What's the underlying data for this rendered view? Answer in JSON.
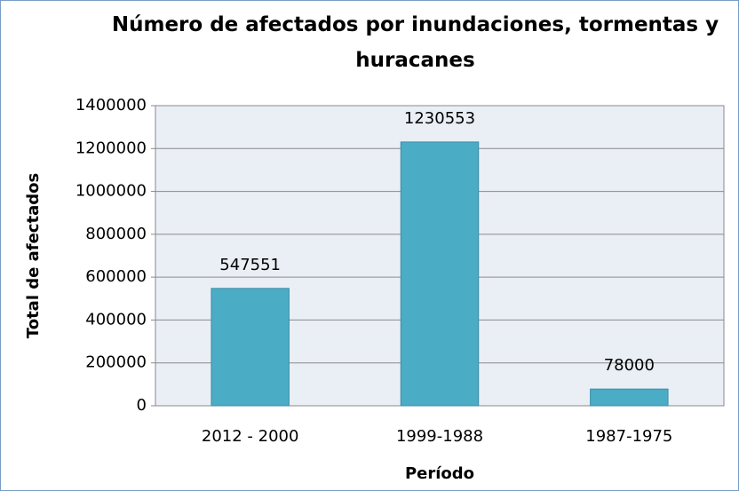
{
  "chart_data": {
    "type": "bar",
    "title": "Número de afectados por inundaciones, tormentas y huracanes",
    "x_label": "Período",
    "y_label": "Total de afectados",
    "categories": [
      "2012 - 2000",
      "1999-1988",
      "1987-1975"
    ],
    "values": [
      547551,
      1230553,
      78000
    ],
    "color": "#4bacc6",
    "show_value_labels": true,
    "ylim": [
      0,
      1400000
    ],
    "yticks": [
      0,
      200000,
      400000,
      600000,
      800000,
      1000000,
      1200000,
      1400000
    ],
    "grid": true
  }
}
